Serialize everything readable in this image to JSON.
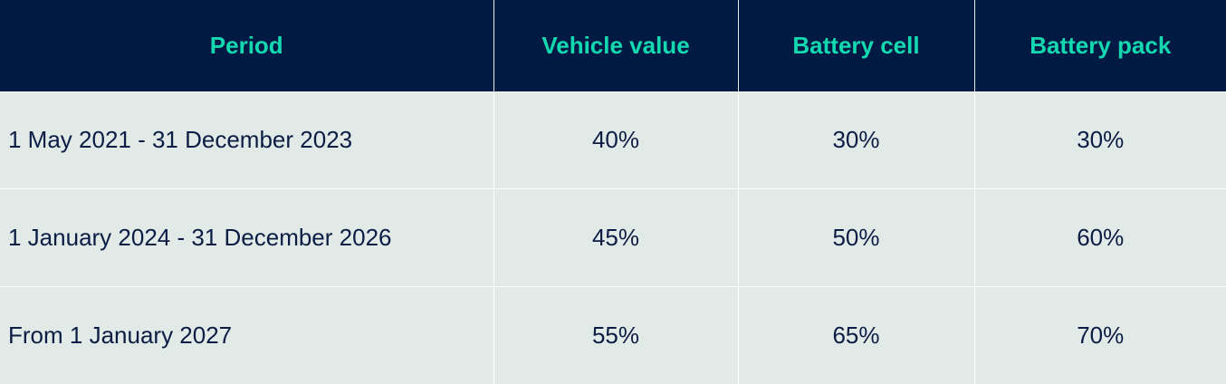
{
  "table": {
    "headers": [
      "Period",
      "Vehicle value",
      "Battery cell",
      "Battery pack"
    ],
    "rows": [
      [
        "1 May 2021 - 31 December 2023",
        "40%",
        "30%",
        "30%"
      ],
      [
        "1 January 2024 - 31 December 2026",
        "45%",
        "50%",
        "60%"
      ],
      [
        "From 1 January 2027",
        "55%",
        "65%",
        "70%"
      ]
    ]
  },
  "colors": {
    "header_background": "#011a44",
    "header_text": "#14d9b0",
    "cell_background": "#e2eae7",
    "cell_text": "#0c1d45"
  }
}
